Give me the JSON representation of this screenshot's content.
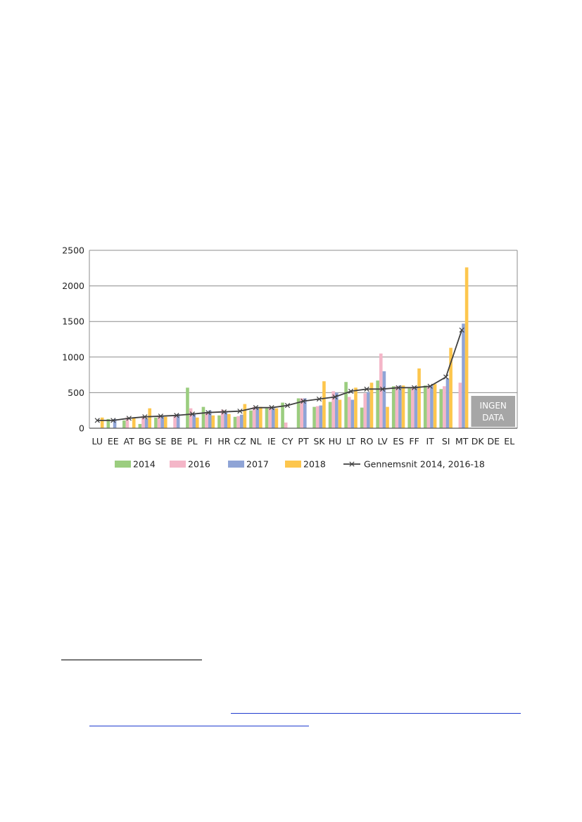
{
  "chart_data": {
    "type": "bar",
    "categories": [
      "LU",
      "EE",
      "AT",
      "BG",
      "SE",
      "BE",
      "PL",
      "FI",
      "HR",
      "CZ",
      "NL",
      "IE",
      "CY",
      "PT",
      "SK",
      "HU",
      "LT",
      "RO",
      "LV",
      "ES",
      "FF",
      "IT",
      "SI",
      "MT",
      "DK",
      "DE",
      "EL"
    ],
    "series": [
      {
        "name": "2014",
        "color": "#9bcd7f",
        "values": [
          0,
          130,
          110,
          60,
          150,
          0,
          570,
          300,
          180,
          160,
          250,
          280,
          360,
          420,
          300,
          370,
          650,
          290,
          670,
          590,
          560,
          600,
          550,
          0,
          null,
          null,
          null
        ]
      },
      {
        "name": "2016",
        "color": "#f4b6c8",
        "values": [
          0,
          0,
          150,
          170,
          180,
          170,
          280,
          210,
          260,
          170,
          300,
          300,
          80,
          420,
          310,
          520,
          440,
          490,
          1050,
          590,
          580,
          590,
          590,
          640,
          null,
          null,
          null
        ]
      },
      {
        "name": "2017",
        "color": "#8fa4d6",
        "values": [
          0,
          130,
          0,
          140,
          180,
          200,
          200,
          250,
          230,
          190,
          300,
          290,
          0,
          420,
          320,
          500,
          400,
          510,
          800,
          600,
          590,
          600,
          700,
          1470,
          null,
          null,
          null
        ]
      },
      {
        "name": "2018",
        "color": "#fdc64d",
        "values": [
          150,
          0,
          140,
          280,
          160,
          0,
          150,
          180,
          200,
          340,
          300,
          280,
          0,
          0,
          660,
          400,
          570,
          640,
          300,
          600,
          840,
          620,
          1130,
          2260,
          null,
          null,
          null
        ]
      }
    ],
    "line": {
      "name": "Gennemsnit 2014, 2016-18",
      "color": "#404040",
      "values": [
        110,
        110,
        140,
        160,
        170,
        180,
        200,
        220,
        230,
        240,
        290,
        290,
        320,
        380,
        410,
        440,
        520,
        550,
        550,
        570,
        570,
        590,
        720,
        1380,
        null,
        null,
        null
      ]
    },
    "ylim": [
      0,
      2500
    ],
    "yticks": [
      0,
      500,
      1000,
      1500,
      2000,
      2500
    ],
    "grid": true,
    "legend_position": "bottom",
    "annotation": {
      "lines": [
        "INGEN",
        "DATA"
      ],
      "categories": [
        "DK",
        "DE",
        "EL"
      ]
    }
  }
}
